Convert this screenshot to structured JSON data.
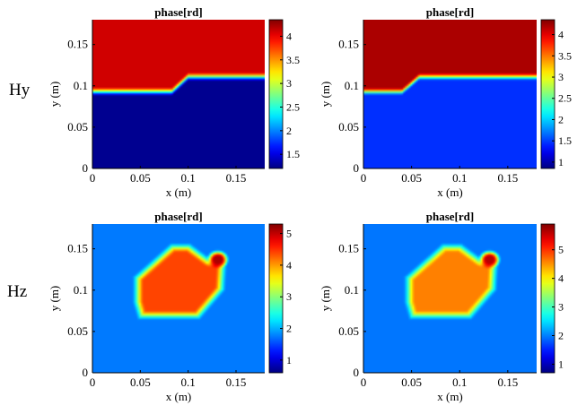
{
  "row_labels": [
    "Hy",
    "Hz"
  ],
  "chart_data": [
    {
      "type": "heatmap",
      "title": "phase[rd]",
      "row": "Hy",
      "xlabel": "x (m)",
      "ylabel": "y (m)",
      "xlim": [
        0,
        0.18
      ],
      "ylim": [
        0,
        0.18
      ],
      "xticks": [
        "0",
        "0.05",
        "0.1",
        "0.15"
      ],
      "yticks": [
        "0",
        "0.05",
        "0.1",
        "0.15"
      ],
      "colormap": "jet",
      "clim": [
        1.2,
        4.35
      ],
      "colorbar_ticks": [
        "1.5",
        "2",
        "2.5",
        "3",
        "3.5",
        "4"
      ],
      "field": {
        "kind": "interface",
        "interface_points": [
          [
            0,
            0.093
          ],
          [
            0.083,
            0.093
          ],
          [
            0.1,
            0.111
          ],
          [
            0.18,
            0.111
          ]
        ],
        "value_above": 4.1,
        "value_below": 1.25,
        "transition_width": 0.006
      }
    },
    {
      "type": "heatmap",
      "title": "phase[rd]",
      "row": "Hy",
      "xlabel": "x (m)",
      "ylabel": "y (m)",
      "xlim": [
        0,
        0.18
      ],
      "ylim": [
        0,
        0.18
      ],
      "xticks": [
        "0",
        "0.05",
        "0.1",
        "0.15"
      ],
      "yticks": [
        "0",
        "0.05",
        "0.1",
        "0.15"
      ],
      "colormap": "jet",
      "clim": [
        0.85,
        4.35
      ],
      "colorbar_ticks": [
        "1",
        "1.5",
        "2",
        "2.5",
        "3",
        "3.5",
        "4"
      ],
      "field": {
        "kind": "interface",
        "interface_points": [
          [
            0,
            0.093
          ],
          [
            0.04,
            0.093
          ],
          [
            0.058,
            0.111
          ],
          [
            0.18,
            0.111
          ]
        ],
        "value_above": 4.2,
        "value_below": 1.45,
        "transition_width": 0.005
      }
    },
    {
      "type": "heatmap",
      "title": "phase[rd]",
      "row": "Hz",
      "xlabel": "x (m)",
      "ylabel": "y (m)",
      "xlim": [
        0,
        0.18
      ],
      "ylim": [
        0,
        0.18
      ],
      "xticks": [
        "0",
        "0.05",
        "0.1",
        "0.15"
      ],
      "yticks": [
        "0",
        "0.05",
        "0.1",
        "0.15"
      ],
      "colormap": "jet",
      "clim": [
        0.6,
        5.3
      ],
      "colorbar_ticks": [
        "1",
        "2",
        "3",
        "4",
        "5"
      ],
      "field": {
        "kind": "blob",
        "polygon": [
          [
            0.043,
            0.116
          ],
          [
            0.082,
            0.156
          ],
          [
            0.102,
            0.156
          ],
          [
            0.123,
            0.138
          ],
          [
            0.135,
            0.145
          ],
          [
            0.14,
            0.136
          ],
          [
            0.138,
            0.1
          ],
          [
            0.112,
            0.065
          ],
          [
            0.048,
            0.065
          ],
          [
            0.043,
            0.085
          ]
        ],
        "value_inside": 4.4,
        "value_outside": 1.75,
        "transition_width": 0.011,
        "hotspot": {
          "center": [
            0.131,
            0.137
          ],
          "radius": 0.009,
          "value": 5.1
        }
      }
    },
    {
      "type": "heatmap",
      "title": "phase[rd]",
      "row": "Hz",
      "xlabel": "x (m)",
      "ylabel": "y (m)",
      "xlim": [
        0,
        0.18
      ],
      "ylim": [
        0,
        0.18
      ],
      "xticks": [
        "0",
        "0.05",
        "0.1",
        "0.15"
      ],
      "yticks": [
        "0",
        "0.05",
        "0.1",
        "0.15"
      ],
      "colormap": "jet",
      "clim": [
        0.7,
        5.9
      ],
      "colorbar_ticks": [
        "1",
        "2",
        "3",
        "4",
        "5"
      ],
      "field": {
        "kind": "blob",
        "polygon": [
          [
            0.043,
            0.116
          ],
          [
            0.082,
            0.156
          ],
          [
            0.102,
            0.156
          ],
          [
            0.123,
            0.138
          ],
          [
            0.135,
            0.145
          ],
          [
            0.14,
            0.136
          ],
          [
            0.138,
            0.1
          ],
          [
            0.112,
            0.065
          ],
          [
            0.048,
            0.065
          ],
          [
            0.043,
            0.085
          ]
        ],
        "value_inside": 4.6,
        "value_outside": 1.95,
        "transition_width": 0.011,
        "hotspot": {
          "center": [
            0.131,
            0.137
          ],
          "radius": 0.009,
          "value": 5.6
        }
      }
    }
  ]
}
